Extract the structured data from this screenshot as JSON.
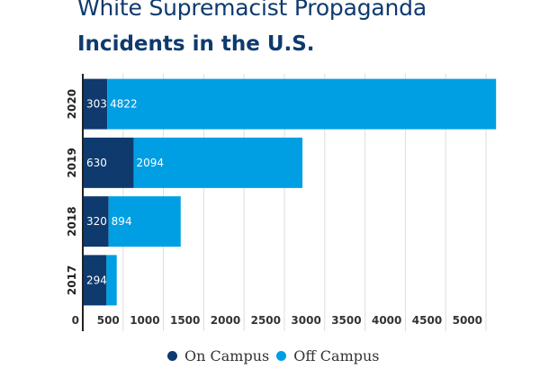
{
  "chart_data": {
    "type": "bar",
    "orientation": "horizontal",
    "stacked": true,
    "title": "White Supremacist Propaganda",
    "subtitle": "Incidents in the U.S.",
    "categories": [
      "2020",
      "2019",
      "2018",
      "2017"
    ],
    "series": [
      {
        "name": "On Campus",
        "color": "#0e3a6e",
        "values": [
          303,
          630,
          320,
          294
        ]
      },
      {
        "name": "Off Campus",
        "color": "#009fe3",
        "values": [
          4822,
          2094,
          894,
          127
        ]
      }
    ],
    "data_labels": {
      "On Campus": [
        "303",
        "630",
        "320",
        "294"
      ],
      "Off Campus": [
        "4822",
        "2094",
        "894",
        ""
      ]
    },
    "xlabel": "",
    "ylabel": "",
    "xlim": [
      0,
      5250
    ],
    "xticks": [
      0,
      500,
      1000,
      1500,
      2000,
      2500,
      3000,
      3500,
      4000,
      4500,
      5000
    ],
    "xtick_labels": [
      "0",
      "500",
      "1000",
      "1500",
      "2000",
      "2500",
      "3000",
      "3500",
      "4000",
      "4500",
      "5000"
    ],
    "grid": true,
    "legend_position": "bottom-center"
  }
}
